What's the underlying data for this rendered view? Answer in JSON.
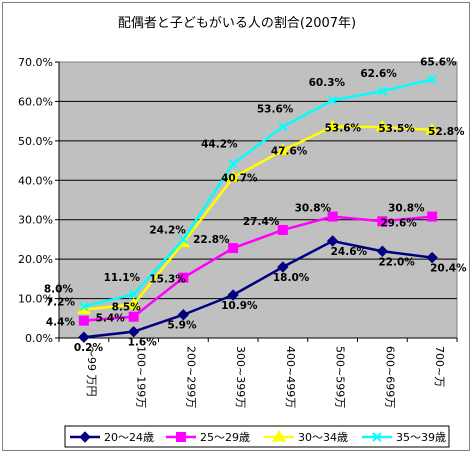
{
  "chart_data": {
    "type": "line",
    "title": "配偶者と子どもがいる人の割合(2007年)",
    "categories": [
      "～99 万円",
      "100~199万",
      "200~299万",
      "300~399万",
      "400~499万",
      "500~599万",
      "600~699万",
      "700~万"
    ],
    "ylim": [
      0,
      70
    ],
    "ytick_labels": [
      "0.0%",
      "10.0%",
      "20.0%",
      "30.0%",
      "40.0%",
      "50.0%",
      "60.0%",
      "70.0%"
    ],
    "grid": true,
    "legend_position": "bottom",
    "series": [
      {
        "name": "20～24歳",
        "color": "#000080",
        "marker": "diamond",
        "values": [
          0.2,
          1.6,
          5.9,
          10.9,
          18.0,
          24.6,
          22.0,
          20.4
        ],
        "labels": [
          "0.2%",
          "1.6%",
          "5.9%",
          "10.9%",
          "18.0%",
          "24.6%",
          "22.0%",
          "20.4%"
        ]
      },
      {
        "name": "25～29歳",
        "color": "#ff00ff",
        "marker": "square",
        "values": [
          4.4,
          5.4,
          15.3,
          22.8,
          27.4,
          30.8,
          29.6,
          30.8
        ],
        "labels": [
          "4.4%",
          "5.4%",
          "15.3%",
          "22.8%",
          "27.4%",
          "30.8%",
          "29.6%",
          "30.8%"
        ]
      },
      {
        "name": "30～34歳",
        "color": "#ffff00",
        "marker": "triangle",
        "values": [
          7.2,
          8.5,
          24.2,
          40.7,
          47.6,
          53.6,
          53.5,
          52.8
        ],
        "labels": [
          "7.2%",
          "8.5%",
          "24.2%",
          "40.7%",
          "47.6%",
          "53.6%",
          "53.5%",
          "52.8%"
        ]
      },
      {
        "name": "35～39歳",
        "color": "#00ffff",
        "marker": "x",
        "values": [
          8.0,
          11.1,
          25.0,
          44.2,
          53.6,
          60.3,
          62.6,
          65.6
        ],
        "labels": [
          "8.0%",
          "11.1%",
          "",
          "44.2%",
          "53.6%",
          "60.3%",
          "62.6%",
          "65.6%"
        ]
      }
    ]
  }
}
